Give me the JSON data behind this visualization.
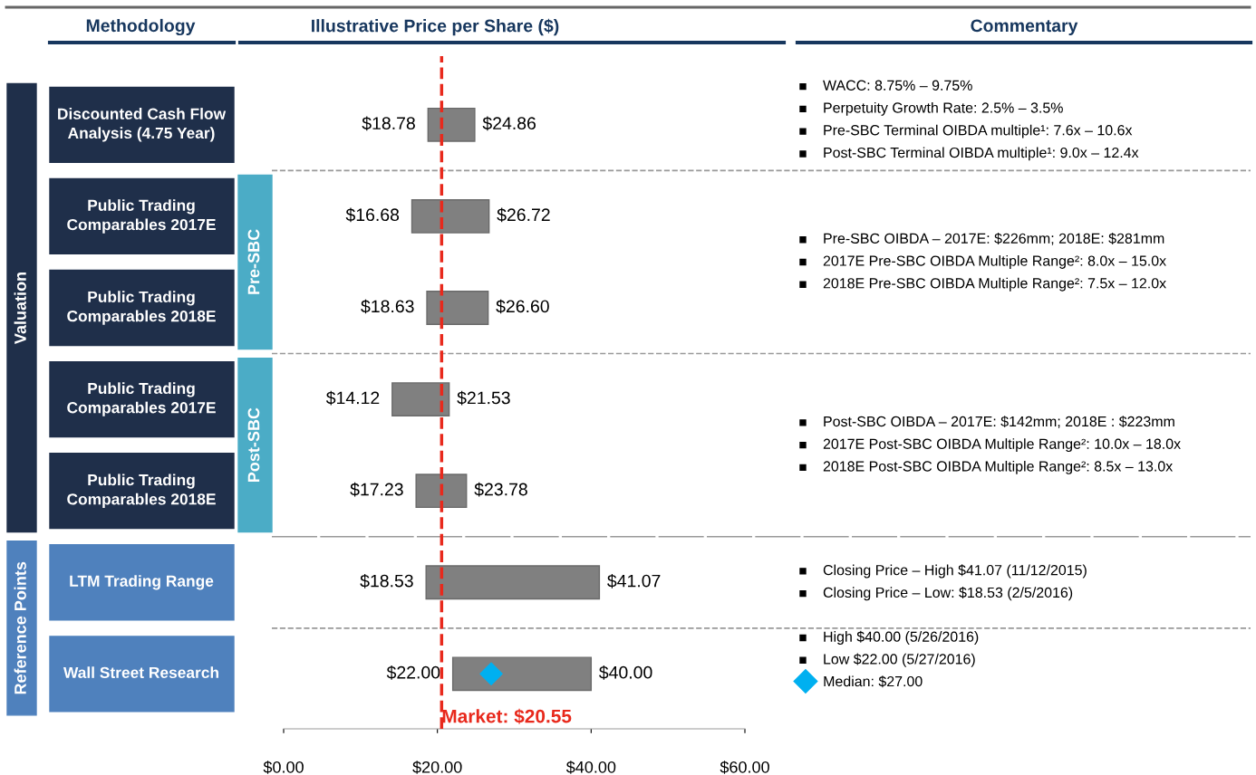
{
  "chart_data": {
    "type": "bar",
    "orientation": "horizontal",
    "title": "Illustrative Price per Share ($)",
    "categories": [
      "Discounted Cash Flow Analysis (4.75 Year)",
      "Public Trading Comparables 2017E",
      "Public Trading Comparables 2018E",
      "Public Trading Comparables 2017E",
      "Public Trading Comparables 2018E",
      "LTM Trading Range",
      "Wall Street Research"
    ],
    "series": [
      {
        "color": "#808080",
        "base": [
          18.78,
          16.68,
          18.63,
          14.12,
          17.23,
          18.53,
          22.0
        ],
        "values": [
          6.08,
          10.04,
          7.97,
          7.41,
          6.55,
          22.54,
          18.0
        ]
      },
      {
        "type": "scatter",
        "name": "Median: $27.00",
        "color": "#00b0f0",
        "marker": "diamond",
        "x": [
          "Wall Street Research"
        ],
        "values": [
          27.0
        ]
      }
    ],
    "xlim": [
      0,
      60
    ],
    "xticks": [
      {
        "value": 0,
        "label": "$0.00"
      },
      {
        "value": 20,
        "label": "$20.00"
      },
      {
        "value": 40,
        "label": "$40.00"
      },
      {
        "value": 60,
        "label": "$60.00"
      }
    ],
    "ref_lines": [
      {
        "axis": "x",
        "value": 20.55,
        "label": "Market: $20.55",
        "color": "#e8291c",
        "line_style": "dashed"
      }
    ],
    "legend": "right",
    "grid": false,
    "annotations": [
      "Methodology",
      "Commentary",
      "Valuation",
      "Reference Points",
      "Pre-SBC",
      "Post-SBC",
      "WACC: 8.75% – 9.75%",
      "Perpetuity Growth Rate: 2.5% – 3.5%",
      "Pre-SBC Terminal OIBDA multiple¹: 7.6x – 10.6x",
      "Post-SBC Terminal OIBDA multiple¹: 9.0x – 12.4x",
      "Pre-SBC OIBDA – 2017E: $226mm; 2018E: $281mm",
      "2017E Pre-SBC OIBDA Multiple Range²: 8.0x – 15.0x",
      "2018E Pre-SBC OIBDA Multiple Range²: 7.5x – 12.0x",
      "Post-SBC OIBDA – 2017E: $142mm; 2018E : $223mm",
      "2017E Post-SBC OIBDA Multiple Range²: 10.0x – 18.0x",
      "2018E Post-SBC OIBDA Multiple Range²: 8.5x – 13.0x",
      "Closing Price – High $41.07 (11/12/2015)",
      "Closing Price – Low: $18.53 (2/5/2016)",
      "High $40.00 (5/26/2016)",
      "Low $22.00 (5/27/2016)",
      "$18.78",
      "$24.86",
      "$16.68",
      "$26.72",
      "$18.63",
      "$26.60",
      "$14.12",
      "$21.53",
      "$17.23",
      "$23.78",
      "$18.53",
      "$41.07",
      "$22.00",
      "$40.00"
    ]
  }
}
